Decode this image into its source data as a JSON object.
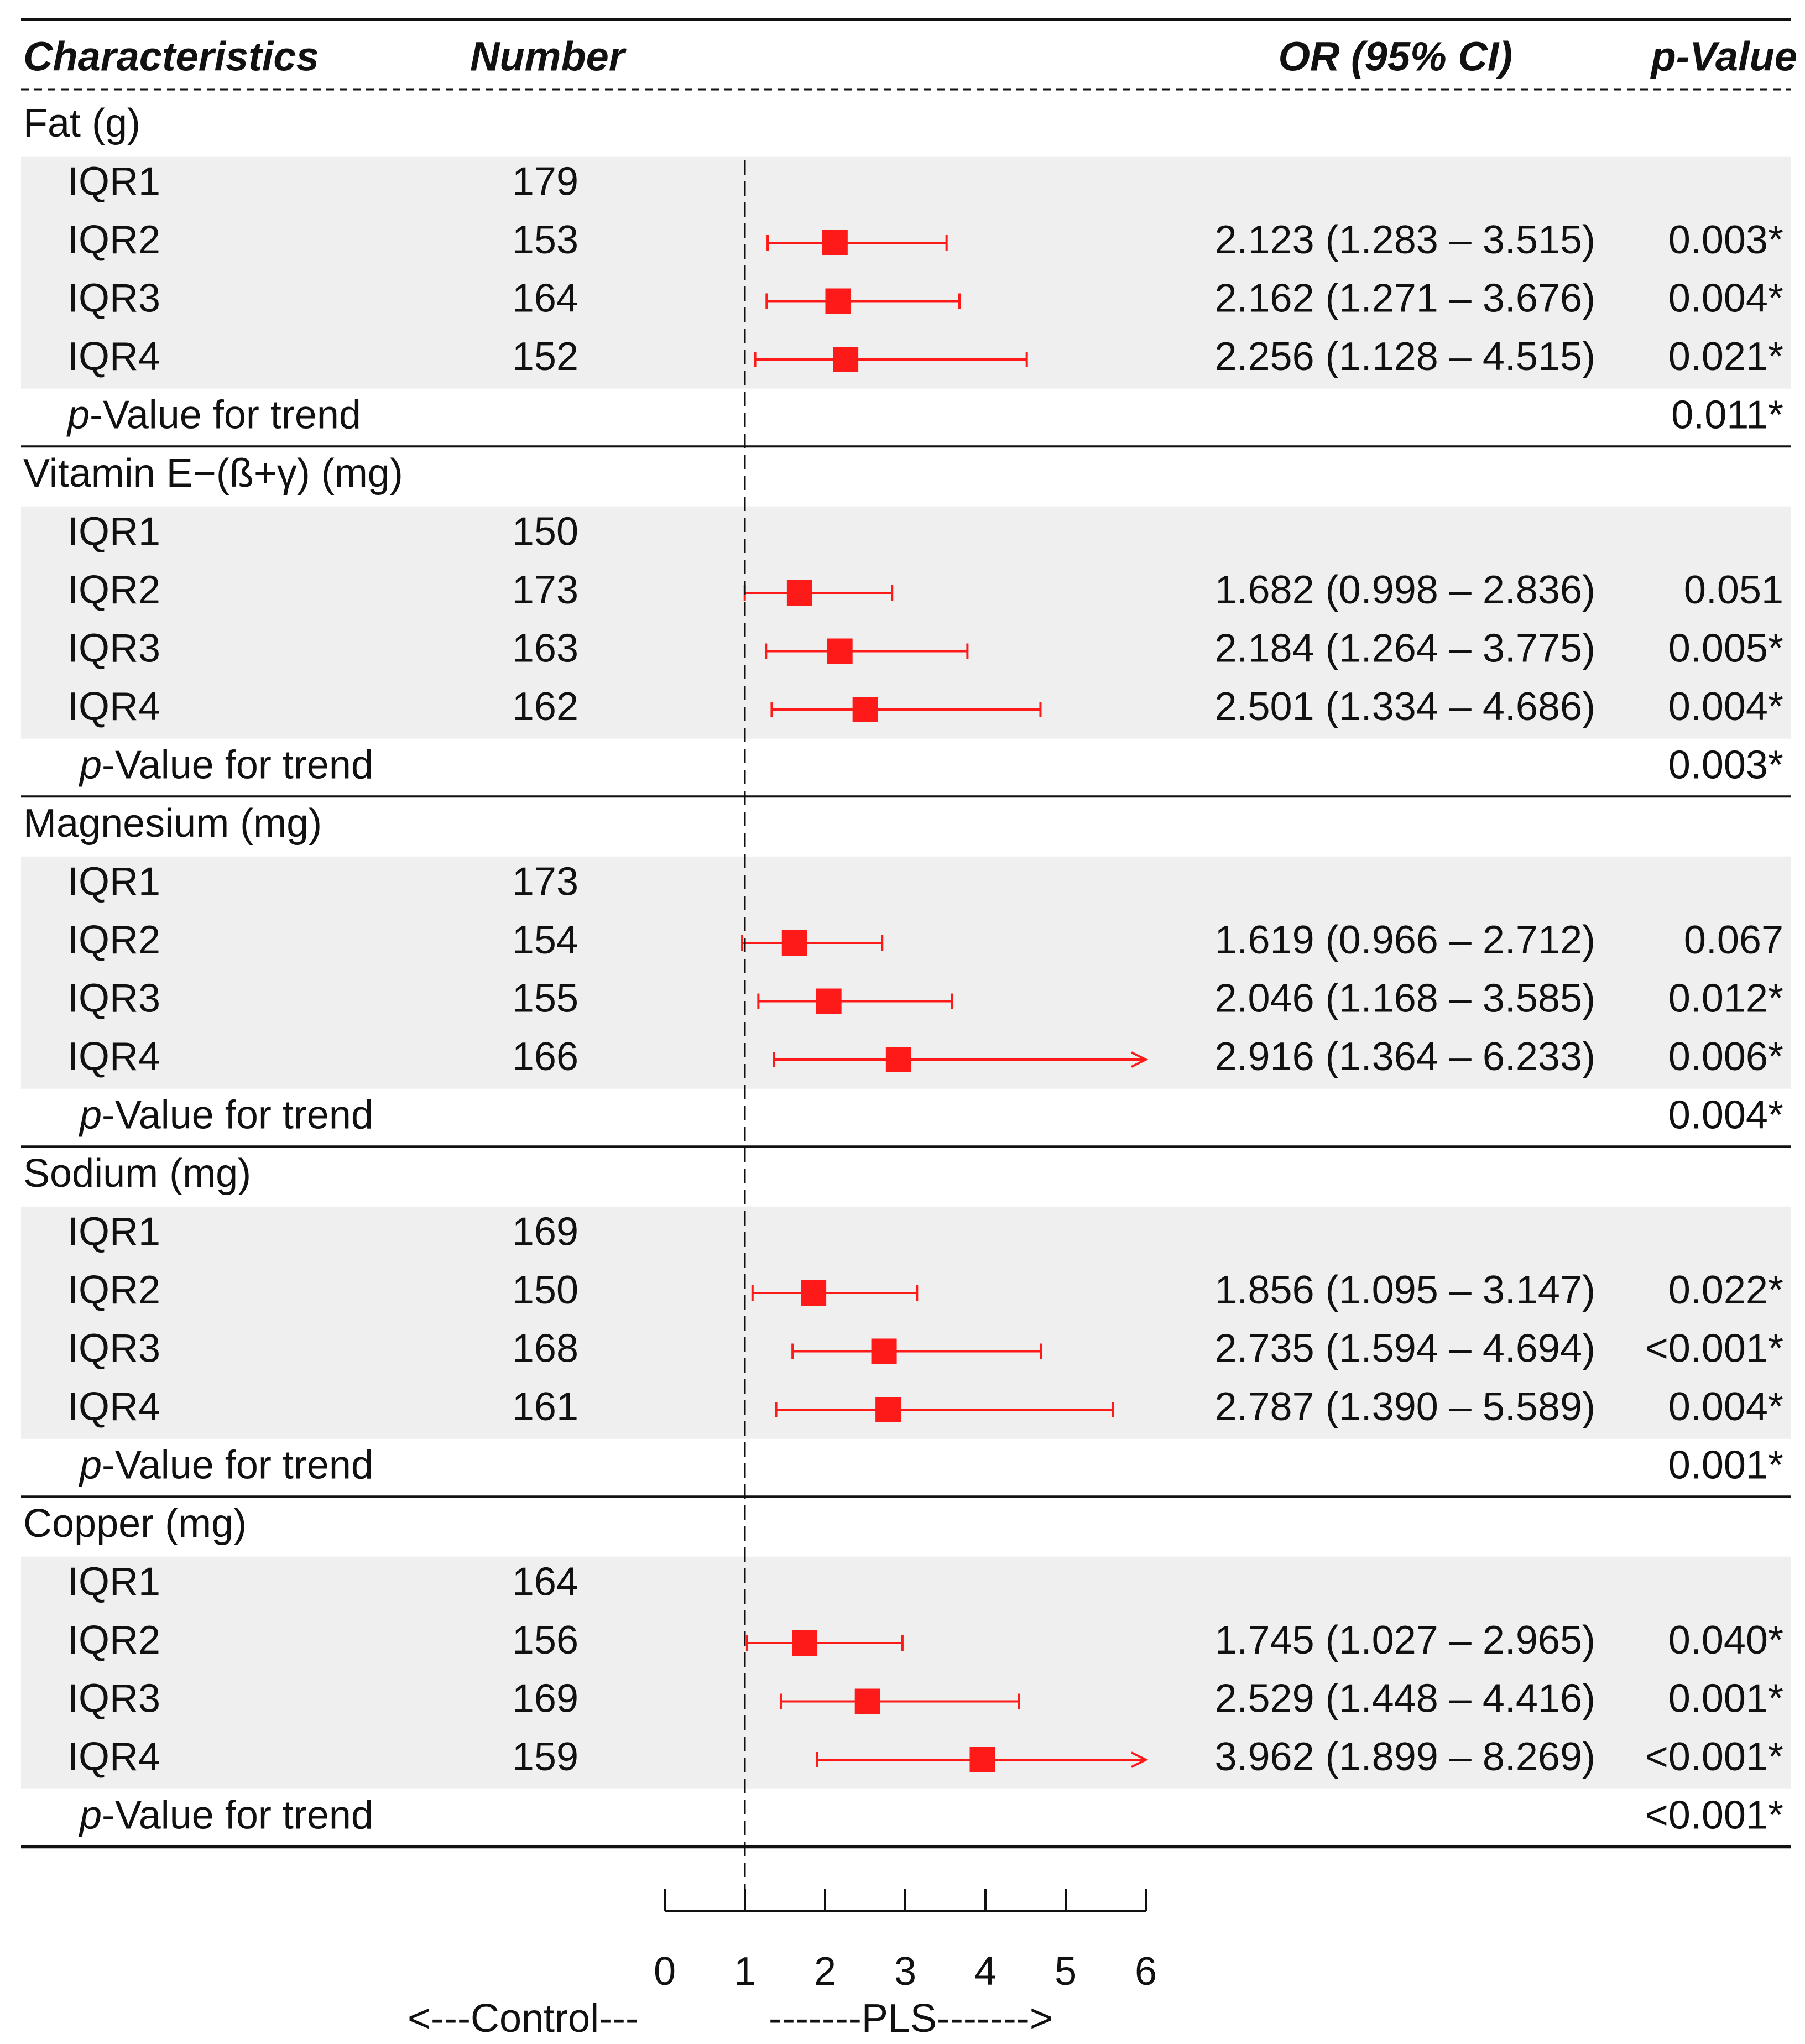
{
  "colors": {
    "marker": "#ff1a1a",
    "shade": "#efefef",
    "rule": "#111111"
  },
  "header": {
    "characteristics": "Characteristics",
    "number": "Number",
    "or_ci": "OR (95% CI)",
    "p_value": "p-Value"
  },
  "trend_label_prefix": "p",
  "trend_label_rest": "-Value for trend",
  "chart_data": {
    "type": "forest",
    "reference_line": 1,
    "xlim": [
      0,
      6
    ],
    "xticks": [
      0,
      1,
      2,
      3,
      4,
      5,
      6
    ],
    "xtick_labels": [
      "0",
      "1",
      "2",
      "3",
      "4",
      "5",
      "6"
    ],
    "direction_labels": {
      "left": "<---Control---",
      "right": "-------PLS------->"
    },
    "groups": [
      {
        "name": "Fat (g)",
        "rows": [
          {
            "label": "IQR1",
            "n": "179",
            "or": null,
            "lo": null,
            "hi": null,
            "text": "",
            "p": "",
            "arrow": false
          },
          {
            "label": "IQR2",
            "n": "153",
            "or": 2.123,
            "lo": 1.283,
            "hi": 3.515,
            "text": "2.123 (1.283 – 3.515)",
            "p": "0.003*",
            "arrow": false
          },
          {
            "label": "IQR3",
            "n": "164",
            "or": 2.162,
            "lo": 1.271,
            "hi": 3.676,
            "text": "2.162 (1.271 – 3.676)",
            "p": "0.004*",
            "arrow": false
          },
          {
            "label": "IQR4",
            "n": "152",
            "or": 2.256,
            "lo": 1.128,
            "hi": 4.515,
            "text": "2.256 (1.128 – 4.515)",
            "p": "0.021*",
            "arrow": false
          }
        ],
        "trend_p": "0.011*"
      },
      {
        "name": "Vitamin E−(ß+γ) (mg)",
        "rows": [
          {
            "label": "IQR1",
            "n": "150",
            "or": null,
            "lo": null,
            "hi": null,
            "text": "",
            "p": "",
            "arrow": false
          },
          {
            "label": "IQR2",
            "n": "173",
            "or": 1.682,
            "lo": 0.998,
            "hi": 2.836,
            "text": "1.682 (0.998 – 2.836)",
            "p": "0.051",
            "arrow": false
          },
          {
            "label": "IQR3",
            "n": "163",
            "or": 2.184,
            "lo": 1.264,
            "hi": 3.775,
            "text": "2.184 (1.264 – 3.775)",
            "p": "0.005*",
            "arrow": false
          },
          {
            "label": "IQR4",
            "n": "162",
            "or": 2.501,
            "lo": 1.334,
            "hi": 4.686,
            "text": "2.501 (1.334 – 4.686)",
            "p": "0.004*",
            "arrow": false
          }
        ],
        "trend_p": "0.003*"
      },
      {
        "name": "Magnesium (mg)",
        "rows": [
          {
            "label": "IQR1",
            "n": "173",
            "or": null,
            "lo": null,
            "hi": null,
            "text": "",
            "p": "",
            "arrow": false
          },
          {
            "label": "IQR2",
            "n": "154",
            "or": 1.619,
            "lo": 0.966,
            "hi": 2.712,
            "text": "1.619 (0.966 – 2.712)",
            "p": "0.067",
            "arrow": false
          },
          {
            "label": "IQR3",
            "n": "155",
            "or": 2.046,
            "lo": 1.168,
            "hi": 3.585,
            "text": "2.046 (1.168 – 3.585)",
            "p": "0.012*",
            "arrow": false
          },
          {
            "label": "IQR4",
            "n": "166",
            "or": 2.916,
            "lo": 1.364,
            "hi": 6.233,
            "text": "2.916 (1.364 – 6.233)",
            "p": "0.006*",
            "arrow": true
          }
        ],
        "trend_p": "0.004*"
      },
      {
        "name": "Sodium (mg)",
        "rows": [
          {
            "label": "IQR1",
            "n": "169",
            "or": null,
            "lo": null,
            "hi": null,
            "text": "",
            "p": "",
            "arrow": false
          },
          {
            "label": "IQR2",
            "n": "150",
            "or": 1.856,
            "lo": 1.095,
            "hi": 3.147,
            "text": "1.856 (1.095 – 3.147)",
            "p": "0.022*",
            "arrow": false
          },
          {
            "label": "IQR3",
            "n": "168",
            "or": 2.735,
            "lo": 1.594,
            "hi": 4.694,
            "text": "2.735 (1.594 – 4.694)",
            "p": "<0.001*",
            "arrow": false
          },
          {
            "label": "IQR4",
            "n": "161",
            "or": 2.787,
            "lo": 1.39,
            "hi": 5.589,
            "text": "2.787 (1.390 – 5.589)",
            "p": "0.004*",
            "arrow": false
          }
        ],
        "trend_p": "0.001*"
      },
      {
        "name": "Copper (mg)",
        "rows": [
          {
            "label": "IQR1",
            "n": "164",
            "or": null,
            "lo": null,
            "hi": null,
            "text": "",
            "p": "",
            "arrow": false
          },
          {
            "label": "IQR2",
            "n": "156",
            "or": 1.745,
            "lo": 1.027,
            "hi": 2.965,
            "text": "1.745 (1.027 – 2.965)",
            "p": "0.040*",
            "arrow": false
          },
          {
            "label": "IQR3",
            "n": "169",
            "or": 2.529,
            "lo": 1.448,
            "hi": 4.416,
            "text": "2.529 (1.448 – 4.416)",
            "p": "0.001*",
            "arrow": false
          },
          {
            "label": "IQR4",
            "n": "159",
            "or": 3.962,
            "lo": 1.899,
            "hi": 8.269,
            "text": "3.962 (1.899 – 8.269)",
            "p": "<0.001*",
            "arrow": true
          }
        ],
        "trend_p": "<0.001*"
      }
    ]
  }
}
